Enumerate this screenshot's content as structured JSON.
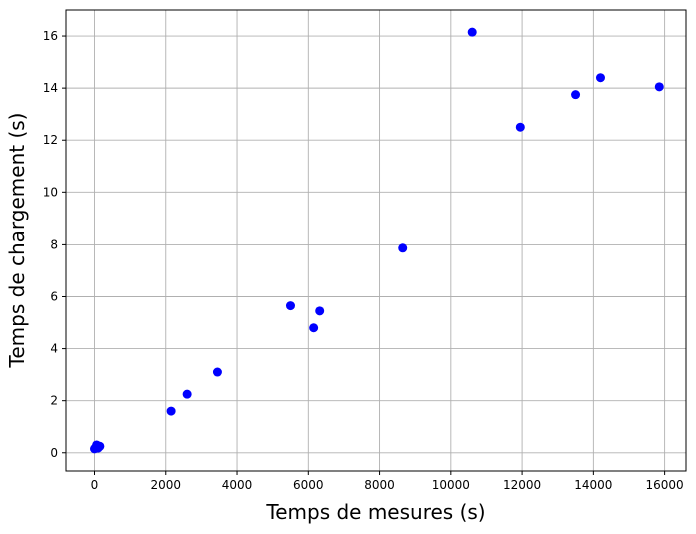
{
  "chart_data": {
    "type": "scatter",
    "title": "",
    "xlabel": "Temps de mesures (s)",
    "ylabel": "Temps de chargement (s)",
    "xlim": [
      -800,
      16600
    ],
    "ylim": [
      -0.7,
      17.0
    ],
    "xticks": [
      0,
      2000,
      4000,
      6000,
      8000,
      10000,
      12000,
      14000,
      16000
    ],
    "yticks": [
      0,
      2,
      4,
      6,
      8,
      10,
      12,
      14,
      16
    ],
    "grid": true,
    "marker_color": "#0000ff",
    "series": [
      {
        "points": [
          {
            "x": 0,
            "y": 0.15
          },
          {
            "x": 30,
            "y": 0.2
          },
          {
            "x": 60,
            "y": 0.3
          },
          {
            "x": 100,
            "y": 0.18
          },
          {
            "x": 150,
            "y": 0.25
          },
          {
            "x": 2150,
            "y": 1.6
          },
          {
            "x": 2600,
            "y": 2.25
          },
          {
            "x": 3450,
            "y": 3.1
          },
          {
            "x": 5500,
            "y": 5.65
          },
          {
            "x": 6150,
            "y": 4.8
          },
          {
            "x": 6320,
            "y": 5.45
          },
          {
            "x": 8650,
            "y": 7.87
          },
          {
            "x": 10600,
            "y": 16.15
          },
          {
            "x": 11950,
            "y": 12.5
          },
          {
            "x": 13500,
            "y": 13.75
          },
          {
            "x": 14200,
            "y": 14.4
          },
          {
            "x": 15850,
            "y": 14.05
          }
        ]
      }
    ]
  }
}
